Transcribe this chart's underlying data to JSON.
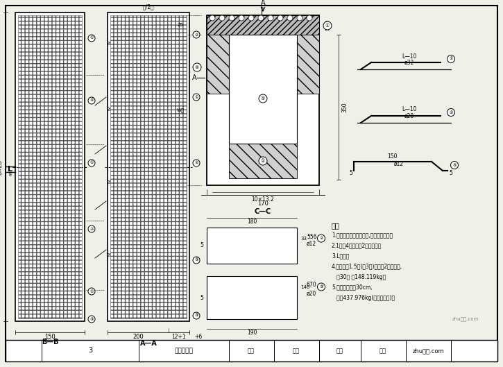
{
  "bg_color": "#f0f0e8",
  "line_color": "#000000",
  "bb_label": "B—B",
  "aa_label": "A—A",
  "cc_label": "C—C",
  "bar_label_3": "3",
  "drawing_title": "杠柱样筋图",
  "label_sheji": "设计",
  "label_fuhe": "夏样",
  "label_hejiao": "核校",
  "label_tuhao": "图号",
  "watermark": "zhu建网.com",
  "note_title": "备注",
  "notes": [
    "1.本图尺寸单位均为毫米,其余均为厘米。",
    "2.1号、4号筋底彂2号筋连接。",
    "3.L型筋。",
    "4.桐顶上共1.5米(关3米)断面加2号筋断面,",
    "   共30根 共148.119kg，",
    "5.桐内筋间距为30cm,",
    "   共重437.976kg(含光圆断头)。"
  ]
}
